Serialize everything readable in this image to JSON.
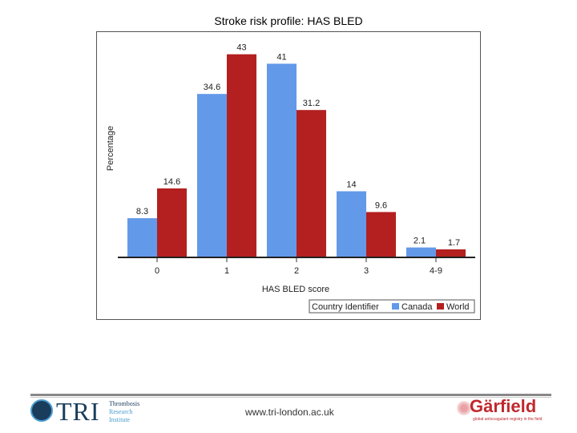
{
  "title": "Stroke risk profile: HAS BLED",
  "chart_data": {
    "type": "bar",
    "categories": [
      "0",
      "1",
      "2",
      "3",
      "4-9"
    ],
    "series": [
      {
        "name": "Canada",
        "color": "#6399e9",
        "values": [
          8.3,
          34.6,
          41,
          14,
          2.1
        ],
        "labels": [
          "8.3",
          "34.6",
          "41",
          "14",
          "2.1"
        ]
      },
      {
        "name": "World",
        "color": "#b3201f",
        "values": [
          14.6,
          43,
          31.2,
          9.6,
          1.7
        ],
        "labels": [
          "14.6",
          "43",
          "31.2",
          "9.6",
          "1.7"
        ]
      }
    ],
    "xlabel": "HAS BLED score",
    "ylabel": "Percentage",
    "ylim": [
      0,
      46
    ],
    "legend_title": "Country Identifier",
    "legend_position": "bottom-right"
  },
  "footer": {
    "tri_name": "TRI",
    "tri_sub": [
      "Thrombosis",
      "Research",
      "Institute"
    ],
    "url": "www.tri-london.ac.uk",
    "garfield_name": "Gärfield",
    "garfield_tagline": "global anticoagulant registry in the field"
  }
}
